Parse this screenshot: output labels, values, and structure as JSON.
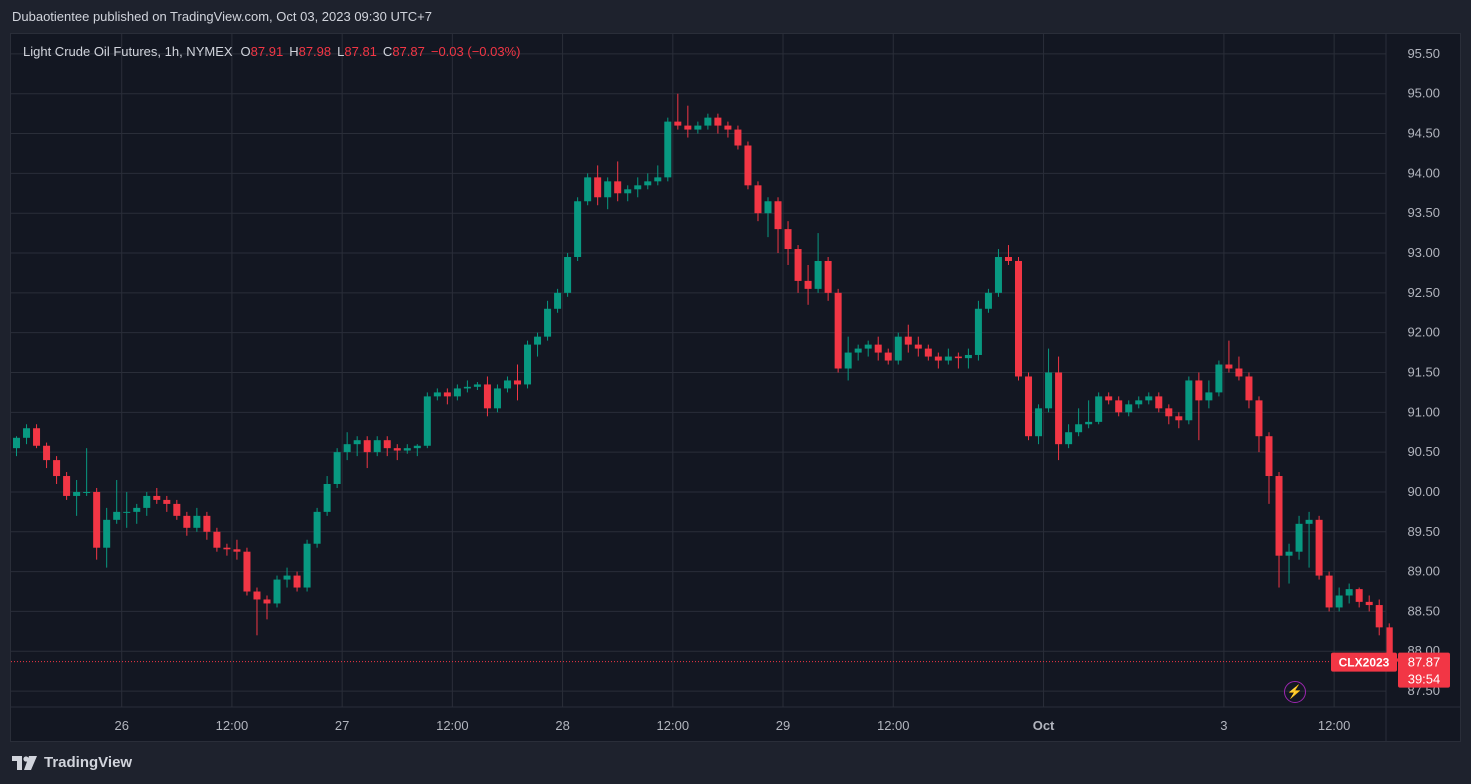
{
  "header": {
    "publisher_text": "Dubaotientee published on TradingView.com, Oct 03, 2023 09:30 UTC+7"
  },
  "legend": {
    "symbol": "Light Crude Oil Futures, 1h, NYMEX",
    "open_label": "O",
    "open": "87.91",
    "high_label": "H",
    "high": "87.98",
    "low_label": "L",
    "low": "87.81",
    "close_label": "C",
    "close": "87.87",
    "change": "−0.03 (−0.03%)"
  },
  "price_tag": {
    "ticker": "CLX2023",
    "price": "87.87",
    "countdown": "39:54"
  },
  "footer": {
    "brand": "TradingView"
  },
  "colors": {
    "up": "#089981",
    "down": "#f23645",
    "background": "#131722",
    "grid": "#2a2e39",
    "text": "#b2b5be"
  },
  "icons": {
    "alert": "lightning-icon",
    "brand": "tradingview-logo-icon"
  },
  "chart_data": {
    "type": "candlestick",
    "title": "Light Crude Oil Futures, 1h, NYMEX",
    "ylim": [
      87.3,
      95.75
    ],
    "y_ticks": [
      "95.50",
      "95.00",
      "94.50",
      "94.00",
      "93.50",
      "93.00",
      "92.50",
      "92.00",
      "91.50",
      "91.00",
      "90.50",
      "90.00",
      "89.50",
      "89.00",
      "88.50",
      "88.00",
      "87.50"
    ],
    "x_ticks": [
      {
        "label": "26",
        "index": 10.5,
        "bold": false
      },
      {
        "label": "12:00",
        "index": 21.5,
        "bold": false
      },
      {
        "label": "27",
        "index": 32.5,
        "bold": false
      },
      {
        "label": "12:00",
        "index": 43.5,
        "bold": false
      },
      {
        "label": "28",
        "index": 54.5,
        "bold": false
      },
      {
        "label": "12:00",
        "index": 65.5,
        "bold": false
      },
      {
        "label": "29",
        "index": 76.5,
        "bold": false
      },
      {
        "label": "12:00",
        "index": 87.5,
        "bold": false
      },
      {
        "label": "Oct",
        "index": 102.5,
        "bold": true
      },
      {
        "label": "3",
        "index": 120.5,
        "bold": false
      },
      {
        "label": "12:00",
        "index": 131.5,
        "bold": false
      }
    ],
    "grid": true,
    "ohlc": [
      [
        90.55,
        90.7,
        90.45,
        90.68
      ],
      [
        90.68,
        90.85,
        90.6,
        90.8
      ],
      [
        90.8,
        90.85,
        90.55,
        90.58
      ],
      [
        90.58,
        90.62,
        90.3,
        90.4
      ],
      [
        90.4,
        90.45,
        90.1,
        90.2
      ],
      [
        90.2,
        90.25,
        89.9,
        89.95
      ],
      [
        89.95,
        90.15,
        89.7,
        90.0
      ],
      [
        90.0,
        90.55,
        89.95,
        90.0
      ],
      [
        90.0,
        90.05,
        89.15,
        89.3
      ],
      [
        89.3,
        89.8,
        89.05,
        89.65
      ],
      [
        89.65,
        90.15,
        89.6,
        89.75
      ],
      [
        89.75,
        90.0,
        89.55,
        89.75
      ],
      [
        89.75,
        89.85,
        89.6,
        89.8
      ],
      [
        89.8,
        90.0,
        89.7,
        89.95
      ],
      [
        89.95,
        90.05,
        89.85,
        89.9
      ],
      [
        89.9,
        89.95,
        89.75,
        89.85
      ],
      [
        89.85,
        89.9,
        89.65,
        89.7
      ],
      [
        89.7,
        89.75,
        89.45,
        89.55
      ],
      [
        89.55,
        89.8,
        89.5,
        89.7
      ],
      [
        89.7,
        89.75,
        89.4,
        89.5
      ],
      [
        89.5,
        89.55,
        89.25,
        89.3
      ],
      [
        89.3,
        89.35,
        89.2,
        89.28
      ],
      [
        89.28,
        89.4,
        89.15,
        89.25
      ],
      [
        89.25,
        89.3,
        88.7,
        88.75
      ],
      [
        88.75,
        88.8,
        88.2,
        88.65
      ],
      [
        88.65,
        88.7,
        88.4,
        88.6
      ],
      [
        88.6,
        88.95,
        88.55,
        88.9
      ],
      [
        88.9,
        89.05,
        88.8,
        88.95
      ],
      [
        88.95,
        89.0,
        88.75,
        88.8
      ],
      [
        88.8,
        89.4,
        88.75,
        89.35
      ],
      [
        89.35,
        89.8,
        89.3,
        89.75
      ],
      [
        89.75,
        90.2,
        89.7,
        90.1
      ],
      [
        90.1,
        90.55,
        90.05,
        90.5
      ],
      [
        90.5,
        90.75,
        90.4,
        90.6
      ],
      [
        90.6,
        90.7,
        90.45,
        90.65
      ],
      [
        90.65,
        90.7,
        90.3,
        90.5
      ],
      [
        90.5,
        90.7,
        90.45,
        90.65
      ],
      [
        90.65,
        90.7,
        90.45,
        90.55
      ],
      [
        90.55,
        90.6,
        90.4,
        90.52
      ],
      [
        90.52,
        90.6,
        90.48,
        90.55
      ],
      [
        90.55,
        90.6,
        90.45,
        90.58
      ],
      [
        90.58,
        91.25,
        90.55,
        91.2
      ],
      [
        91.2,
        91.3,
        91.15,
        91.25
      ],
      [
        91.25,
        91.3,
        91.1,
        91.2
      ],
      [
        91.2,
        91.35,
        91.15,
        91.3
      ],
      [
        91.3,
        91.4,
        91.25,
        91.32
      ],
      [
        91.32,
        91.38,
        91.28,
        91.35
      ],
      [
        91.35,
        91.45,
        90.95,
        91.05
      ],
      [
        91.05,
        91.35,
        91.0,
        91.3
      ],
      [
        91.3,
        91.45,
        91.25,
        91.4
      ],
      [
        91.4,
        91.6,
        91.15,
        91.35
      ],
      [
        91.35,
        91.9,
        91.3,
        91.85
      ],
      [
        91.85,
        92.0,
        91.7,
        91.95
      ],
      [
        91.95,
        92.4,
        91.9,
        92.3
      ],
      [
        92.3,
        92.55,
        92.25,
        92.5
      ],
      [
        92.5,
        93.0,
        92.45,
        92.95
      ],
      [
        92.95,
        93.7,
        92.9,
        93.65
      ],
      [
        93.65,
        94.0,
        93.6,
        93.95
      ],
      [
        93.95,
        94.1,
        93.6,
        93.7
      ],
      [
        93.7,
        93.95,
        93.55,
        93.9
      ],
      [
        93.9,
        94.15,
        93.65,
        93.75
      ],
      [
        93.75,
        93.85,
        93.65,
        93.8
      ],
      [
        93.8,
        93.95,
        93.7,
        93.85
      ],
      [
        93.85,
        94.0,
        93.8,
        93.9
      ],
      [
        93.9,
        94.1,
        93.85,
        93.95
      ],
      [
        93.95,
        94.7,
        93.9,
        94.65
      ],
      [
        94.65,
        95.0,
        94.55,
        94.6
      ],
      [
        94.6,
        94.85,
        94.45,
        94.55
      ],
      [
        94.55,
        94.65,
        94.5,
        94.6
      ],
      [
        94.6,
        94.75,
        94.55,
        94.7
      ],
      [
        94.7,
        94.75,
        94.5,
        94.6
      ],
      [
        94.6,
        94.65,
        94.45,
        94.55
      ],
      [
        94.55,
        94.6,
        94.3,
        94.35
      ],
      [
        94.35,
        94.4,
        93.8,
        93.85
      ],
      [
        93.85,
        93.9,
        93.4,
        93.5
      ],
      [
        93.5,
        93.7,
        93.2,
        93.65
      ],
      [
        93.65,
        93.7,
        93.0,
        93.3
      ],
      [
        93.3,
        93.4,
        92.85,
        93.05
      ],
      [
        93.05,
        93.1,
        92.5,
        92.65
      ],
      [
        92.65,
        92.85,
        92.35,
        92.55
      ],
      [
        92.55,
        93.25,
        92.5,
        92.9
      ],
      [
        92.9,
        92.95,
        92.4,
        92.5
      ],
      [
        92.5,
        92.55,
        91.5,
        91.55
      ],
      [
        91.55,
        91.95,
        91.4,
        91.75
      ],
      [
        91.75,
        91.85,
        91.65,
        91.8
      ],
      [
        91.8,
        91.9,
        91.7,
        91.85
      ],
      [
        91.85,
        91.95,
        91.65,
        91.75
      ],
      [
        91.75,
        91.8,
        91.6,
        91.65
      ],
      [
        91.65,
        92.0,
        91.6,
        91.95
      ],
      [
        91.95,
        92.1,
        91.75,
        91.85
      ],
      [
        91.85,
        91.95,
        91.7,
        91.8
      ],
      [
        91.8,
        91.85,
        91.65,
        91.7
      ],
      [
        91.7,
        91.75,
        91.55,
        91.65
      ],
      [
        91.65,
        91.8,
        91.6,
        91.7
      ],
      [
        91.7,
        91.75,
        91.55,
        91.68
      ],
      [
        91.68,
        91.8,
        91.55,
        91.72
      ],
      [
        91.72,
        92.4,
        91.65,
        92.3
      ],
      [
        92.3,
        92.55,
        92.25,
        92.5
      ],
      [
        92.5,
        93.05,
        92.45,
        92.95
      ],
      [
        92.95,
        93.1,
        92.85,
        92.9
      ],
      [
        92.9,
        92.95,
        91.4,
        91.45
      ],
      [
        91.45,
        91.5,
        90.65,
        90.7
      ],
      [
        90.7,
        91.1,
        90.6,
        91.05
      ],
      [
        91.05,
        91.8,
        91.0,
        91.5
      ],
      [
        91.5,
        91.7,
        90.4,
        90.6
      ],
      [
        90.6,
        90.85,
        90.55,
        90.75
      ],
      [
        90.75,
        91.05,
        90.7,
        90.85
      ],
      [
        90.85,
        91.15,
        90.8,
        90.88
      ],
      [
        90.88,
        91.25,
        90.85,
        91.2
      ],
      [
        91.2,
        91.25,
        91.1,
        91.15
      ],
      [
        91.15,
        91.2,
        90.95,
        91.0
      ],
      [
        91.0,
        91.15,
        90.95,
        91.1
      ],
      [
        91.1,
        91.2,
        91.05,
        91.15
      ],
      [
        91.15,
        91.25,
        91.1,
        91.2
      ],
      [
        91.2,
        91.25,
        91.0,
        91.05
      ],
      [
        91.05,
        91.1,
        90.85,
        90.95
      ],
      [
        90.95,
        91.0,
        90.8,
        90.9
      ],
      [
        90.9,
        91.45,
        90.85,
        91.4
      ],
      [
        91.4,
        91.5,
        90.65,
        91.15
      ],
      [
        91.15,
        91.4,
        91.05,
        91.25
      ],
      [
        91.25,
        91.65,
        91.2,
        91.6
      ],
      [
        91.6,
        91.9,
        91.5,
        91.55
      ],
      [
        91.55,
        91.7,
        91.4,
        91.45
      ],
      [
        91.45,
        91.5,
        91.05,
        91.15
      ],
      [
        91.15,
        91.2,
        90.5,
        90.7
      ],
      [
        90.7,
        90.75,
        89.85,
        90.2
      ],
      [
        90.2,
        90.25,
        88.8,
        89.2
      ],
      [
        89.2,
        89.35,
        88.85,
        89.25
      ],
      [
        89.25,
        89.7,
        89.15,
        89.6
      ],
      [
        89.6,
        89.75,
        89.05,
        89.65
      ],
      [
        89.65,
        89.7,
        88.9,
        88.95
      ],
      [
        88.95,
        89.0,
        88.5,
        88.55
      ],
      [
        88.55,
        88.8,
        88.5,
        88.7
      ],
      [
        88.7,
        88.85,
        88.6,
        88.78
      ],
      [
        88.78,
        88.8,
        88.55,
        88.62
      ],
      [
        88.62,
        88.7,
        88.5,
        88.58
      ],
      [
        88.58,
        88.65,
        88.2,
        88.3
      ],
      [
        88.3,
        88.35,
        87.9,
        87.95
      ],
      [
        87.91,
        87.98,
        87.81,
        87.87
      ]
    ]
  }
}
